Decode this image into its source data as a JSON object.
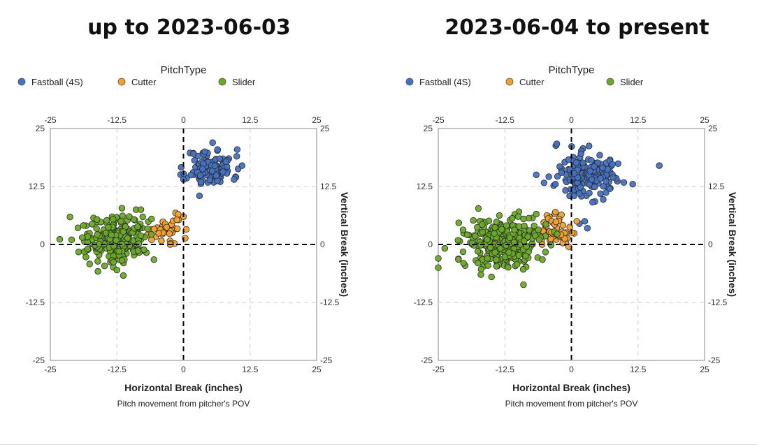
{
  "colors": {
    "fastball": "#4472c4",
    "cutter": "#f4a02a",
    "slider": "#6aab25",
    "grid": "#cccccc",
    "axis": "#000000"
  },
  "chart_data": [
    {
      "type": "scatter",
      "title": "up to 2023-06-03",
      "legend_title": "PitchType",
      "legend_position": "top",
      "xlabel": "Horizontal Break (inches)",
      "ylabel": "Vertical Break (inches)",
      "caption": "Pitch movement from pitcher's POV",
      "xlim": [
        -25,
        25
      ],
      "ylim": [
        -25,
        25
      ],
      "ticks": [
        -25,
        -12.5,
        0,
        12.5,
        25
      ],
      "tick_labels": [
        "-25",
        "-12.5",
        "0",
        "12.5",
        "25"
      ],
      "series": [
        {
          "name": "Fastball (4S)",
          "color_key": "fastball",
          "center": [
            5,
            16.5
          ],
          "spread": [
            2.2,
            2.0
          ],
          "count": 110,
          "seed": 11,
          "extra": [
            [
              0,
              14
            ],
            [
              3,
              10.5
            ],
            [
              9.5,
              14
            ],
            [
              11,
              17
            ],
            [
              10,
              19
            ],
            [
              4,
              20
            ]
          ]
        },
        {
          "name": "Cutter",
          "color_key": "cutter",
          "center": [
            -3.5,
            3.0
          ],
          "spread": [
            1.8,
            1.5
          ],
          "count": 35,
          "seed": 22,
          "extra": [
            [
              -2.5,
              0
            ],
            [
              0,
              6
            ],
            [
              -1,
              6.5
            ],
            [
              -6,
              1
            ]
          ]
        },
        {
          "name": "Slider",
          "color_key": "slider",
          "center": [
            -12.5,
            1.0
          ],
          "spread": [
            3.0,
            2.5
          ],
          "count": 230,
          "seed": 33,
          "extra": [
            [
              -21,
              1
            ],
            [
              -19,
              1.5
            ],
            [
              -18,
              -1
            ],
            [
              -8,
              7.5
            ],
            [
              -12.5,
              -5.5
            ],
            [
              -6,
              5.5
            ]
          ]
        }
      ]
    },
    {
      "type": "scatter",
      "title": "2023-06-04 to present",
      "legend_title": "PitchType",
      "legend_position": "top",
      "xlabel": "Horizontal Break (inches)",
      "ylabel": "Vertical Break (inches)",
      "caption": "Pitch movement from pitcher's POV",
      "xlim": [
        -25,
        25
      ],
      "ylim": [
        -25,
        25
      ],
      "ticks": [
        -25,
        -12.5,
        0,
        12.5,
        25
      ],
      "tick_labels": [
        "-25",
        "-12.5",
        "0",
        "12.5",
        "25"
      ],
      "series": [
        {
          "name": "Fastball (4S)",
          "color_key": "fastball",
          "center": [
            3.0,
            15.0
          ],
          "spread": [
            3.2,
            2.6
          ],
          "count": 160,
          "seed": 44,
          "extra": [
            [
              16.5,
              17
            ],
            [
              11.5,
              13
            ],
            [
              1.5,
              11
            ],
            [
              0.5,
              10.5
            ],
            [
              -3,
              13
            ],
            [
              3,
              3.5
            ],
            [
              1.5,
              4.5
            ],
            [
              2.5,
              5
            ]
          ]
        },
        {
          "name": "Cutter",
          "color_key": "cutter",
          "center": [
            -3.0,
            2.5
          ],
          "spread": [
            1.7,
            1.7
          ],
          "count": 55,
          "seed": 55,
          "extra": [
            [
              -3,
              7
            ],
            [
              -0.5,
              -0.5
            ],
            [
              1,
              5
            ],
            [
              -5.5,
              0
            ]
          ]
        },
        {
          "name": "Slider",
          "color_key": "slider",
          "center": [
            -13.0,
            0.0
          ],
          "spread": [
            3.4,
            2.7
          ],
          "count": 300,
          "seed": 66,
          "extra": [
            [
              -25,
              -5
            ],
            [
              -25,
              -3
            ],
            [
              -15,
              -7
            ],
            [
              -9,
              5.5
            ],
            [
              -10,
              6
            ],
            [
              -7,
              4
            ],
            [
              -17,
              -6.5
            ]
          ]
        }
      ]
    }
  ]
}
